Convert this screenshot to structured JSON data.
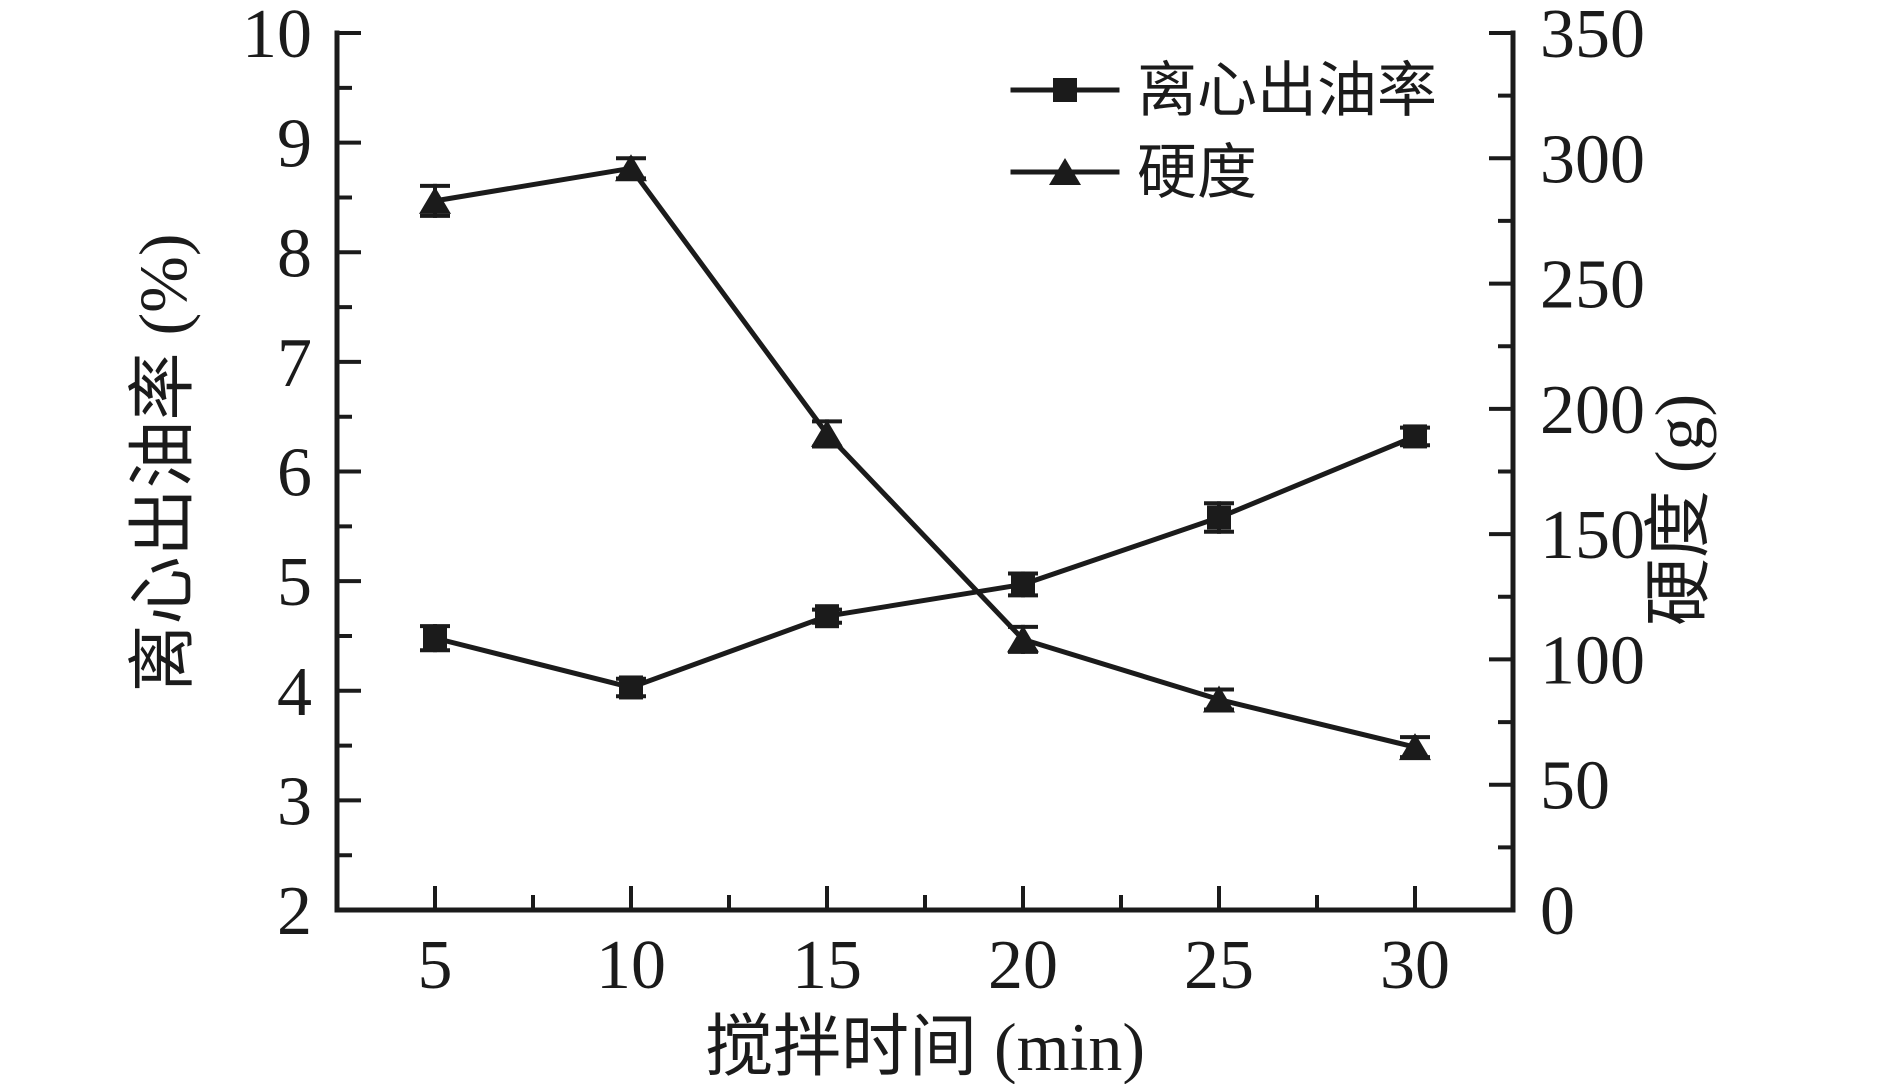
{
  "figure": {
    "background": "#ffffff",
    "ink_color": "#1b1b1b"
  },
  "chart_data": {
    "type": "line",
    "x": [
      5,
      10,
      15,
      20,
      25,
      30
    ],
    "xlabel": "搅拌时间 (min)",
    "xlim": [
      2.5,
      32.5
    ],
    "x_major_ticks": [
      5,
      10,
      15,
      20,
      25,
      30
    ],
    "x_minor_ticks": [
      7.5,
      12.5,
      17.5,
      22.5,
      27.5
    ],
    "left_axis": {
      "label": "离心出油率 (%)",
      "lim": [
        2,
        10
      ],
      "major_step": 1,
      "minor_step": 0.5,
      "major_ticks": [
        2,
        3,
        4,
        5,
        6,
        7,
        8,
        9,
        10
      ]
    },
    "right_axis": {
      "label": "硬度 (g)",
      "lim": [
        0,
        350
      ],
      "major_step": 50,
      "minor_step": 25,
      "major_ticks": [
        0,
        50,
        100,
        150,
        200,
        250,
        300,
        350
      ]
    },
    "series": [
      {
        "name": "离心出油率",
        "axis": "left",
        "marker": "square",
        "color": "#1b1b1b",
        "values": [
          4.48,
          4.03,
          4.68,
          4.97,
          5.58,
          6.32
        ],
        "errors": [
          0.11,
          0.08,
          0.06,
          0.1,
          0.13,
          0.08
        ]
      },
      {
        "name": "硬度",
        "axis": "right",
        "marker": "triangle",
        "color": "#1b1b1b",
        "values": [
          283,
          296,
          190,
          108,
          84,
          65
        ],
        "errors": [
          6,
          4,
          5,
          5,
          4,
          4
        ]
      }
    ],
    "legend": {
      "position": "top-right-inside",
      "entries": [
        "离心出油率",
        "硬度"
      ]
    },
    "grid": false,
    "title": ""
  }
}
